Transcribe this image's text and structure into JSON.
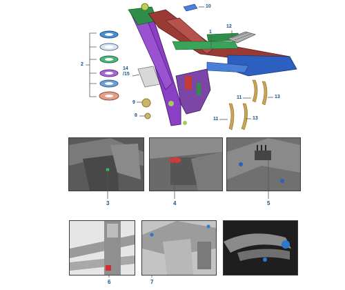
{
  "callouts": {
    "main_view": {
      "c10": "10",
      "c12": "12",
      "c1": "1",
      "c2": "2",
      "c14_15": "14\n/15",
      "c9": "9",
      "c8": "8",
      "c11_a": "11",
      "c13_a": "13",
      "c11_b": "11",
      "c13_b": "13"
    },
    "photo_3": "3",
    "photo_4": "4",
    "photo_5": "5",
    "photo_6": "6",
    "photo_7": "7"
  },
  "colors": {
    "callout": "#1a4f86",
    "frame_purple": "#8a3fc4",
    "frame_green": "#2f8f4a",
    "frame_red": "#9a3a35",
    "frame_blue": "#2c5fbf",
    "bearing_blue": "#4a8fd0",
    "brass": "#c9a553",
    "photo_gray": "#6e6e6e"
  },
  "parts": {
    "bearing_stack_count": 6,
    "strip_count": 4
  }
}
